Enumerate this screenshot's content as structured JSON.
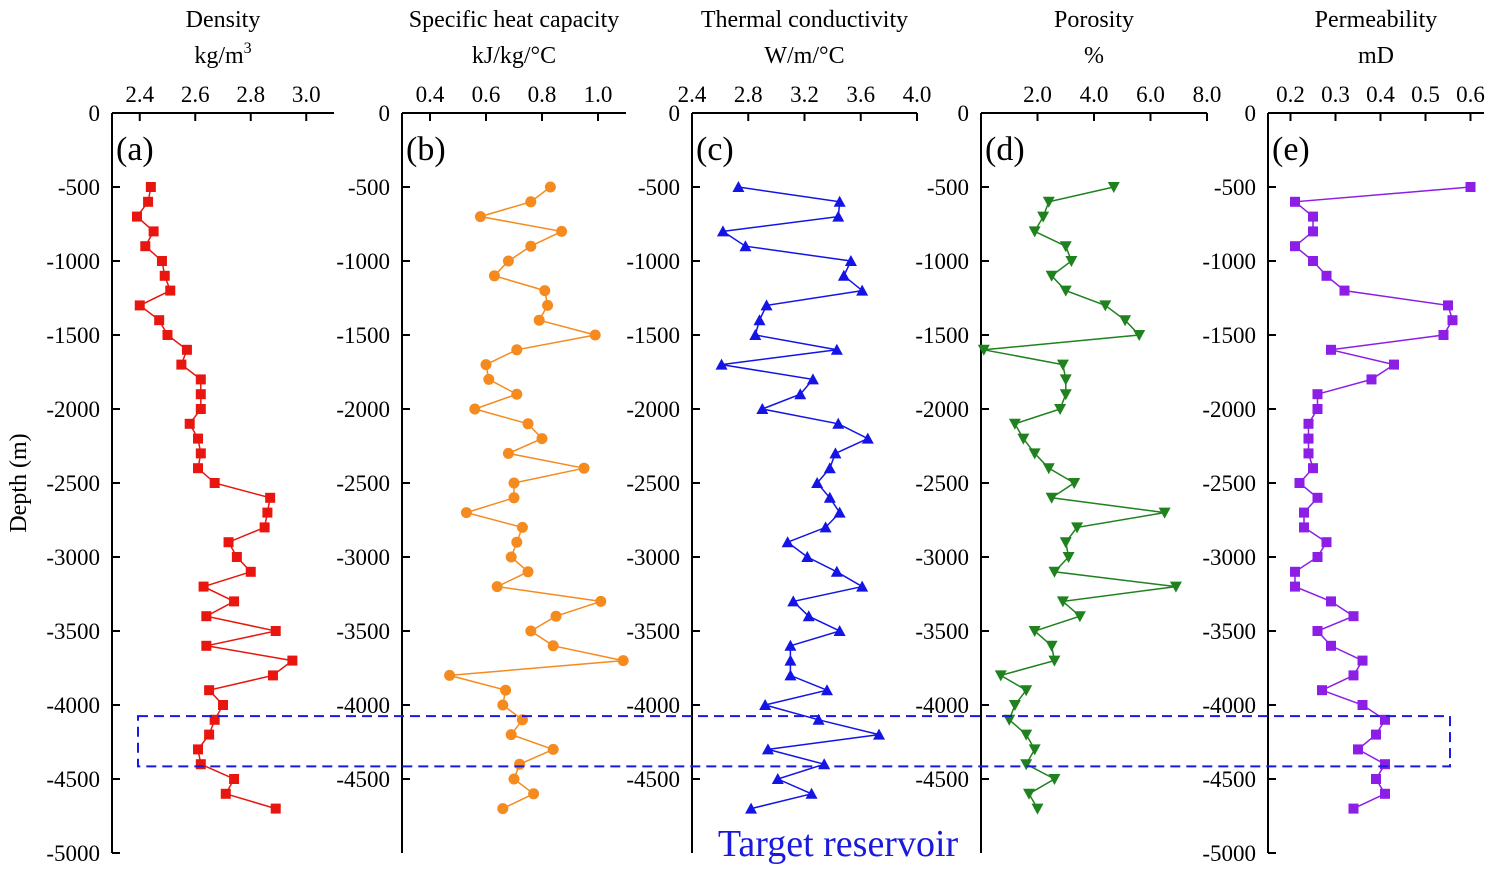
{
  "figure": {
    "ylabel": "Depth (m)",
    "annotation": "Target reservoir",
    "annotation_color": "#1a1adc",
    "target_box_depth_range": [
      -4075,
      -4415
    ]
  },
  "chart_data": [
    {
      "type": "line",
      "panel": "(a)",
      "title": "Density",
      "unit": "kg/m",
      "unit_sup": "3",
      "color": "#e8160f",
      "marker": "square",
      "xlim": [
        2.3,
        3.1
      ],
      "xticks": [
        "2.4",
        "2.6",
        "2.8",
        "3.0"
      ],
      "ylim": [
        -5000,
        0
      ],
      "yticks": [
        "0",
        "-500",
        "-1000",
        "-1500",
        "-2000",
        "-2500",
        "-3000",
        "-3500",
        "-4000",
        "-4500",
        "-5000"
      ],
      "points": [
        [
          2.44,
          -500
        ],
        [
          2.43,
          -600
        ],
        [
          2.39,
          -700
        ],
        [
          2.45,
          -800
        ],
        [
          2.42,
          -900
        ],
        [
          2.48,
          -1000
        ],
        [
          2.49,
          -1100
        ],
        [
          2.51,
          -1200
        ],
        [
          2.4,
          -1300
        ],
        [
          2.47,
          -1400
        ],
        [
          2.5,
          -1500
        ],
        [
          2.57,
          -1600
        ],
        [
          2.55,
          -1700
        ],
        [
          2.62,
          -1800
        ],
        [
          2.62,
          -1900
        ],
        [
          2.62,
          -2000
        ],
        [
          2.58,
          -2100
        ],
        [
          2.61,
          -2200
        ],
        [
          2.62,
          -2300
        ],
        [
          2.61,
          -2400
        ],
        [
          2.67,
          -2500
        ],
        [
          2.87,
          -2600
        ],
        [
          2.86,
          -2700
        ],
        [
          2.85,
          -2800
        ],
        [
          2.72,
          -2900
        ],
        [
          2.75,
          -3000
        ],
        [
          2.8,
          -3100
        ],
        [
          2.63,
          -3200
        ],
        [
          2.74,
          -3300
        ],
        [
          2.64,
          -3400
        ],
        [
          2.89,
          -3500
        ],
        [
          2.64,
          -3600
        ],
        [
          2.95,
          -3700
        ],
        [
          2.88,
          -3800
        ],
        [
          2.65,
          -3900
        ],
        [
          2.7,
          -4000
        ],
        [
          2.67,
          -4100
        ],
        [
          2.65,
          -4200
        ],
        [
          2.61,
          -4300
        ],
        [
          2.62,
          -4400
        ],
        [
          2.74,
          -4500
        ],
        [
          2.71,
          -4600
        ],
        [
          2.89,
          -4700
        ]
      ]
    },
    {
      "type": "line",
      "panel": "(b)",
      "title": "Specific heat capacity",
      "unit": "kJ/kg/°C",
      "unit_sup": "",
      "color": "#f58a1f",
      "marker": "circle",
      "xlim": [
        0.3,
        1.1
      ],
      "xticks": [
        "0.4",
        "0.6",
        "0.8",
        "1.0"
      ],
      "ylim": [
        -5000,
        0
      ],
      "yticks": [
        "0",
        "-500",
        "-1000",
        "-1500",
        "-2000",
        "-2500",
        "-3000",
        "-3500",
        "-4000",
        "-4500"
      ],
      "points": [
        [
          0.83,
          -500
        ],
        [
          0.76,
          -600
        ],
        [
          0.58,
          -700
        ],
        [
          0.87,
          -800
        ],
        [
          0.76,
          -900
        ],
        [
          0.68,
          -1000
        ],
        [
          0.63,
          -1100
        ],
        [
          0.81,
          -1200
        ],
        [
          0.82,
          -1300
        ],
        [
          0.79,
          -1400
        ],
        [
          0.99,
          -1500
        ],
        [
          0.71,
          -1600
        ],
        [
          0.6,
          -1700
        ],
        [
          0.61,
          -1800
        ],
        [
          0.71,
          -1900
        ],
        [
          0.56,
          -2000
        ],
        [
          0.75,
          -2100
        ],
        [
          0.8,
          -2200
        ],
        [
          0.68,
          -2300
        ],
        [
          0.95,
          -2400
        ],
        [
          0.7,
          -2500
        ],
        [
          0.7,
          -2600
        ],
        [
          0.53,
          -2700
        ],
        [
          0.73,
          -2800
        ],
        [
          0.71,
          -2900
        ],
        [
          0.69,
          -3000
        ],
        [
          0.75,
          -3100
        ],
        [
          0.64,
          -3200
        ],
        [
          1.01,
          -3300
        ],
        [
          0.85,
          -3400
        ],
        [
          0.76,
          -3500
        ],
        [
          0.84,
          -3600
        ],
        [
          1.09,
          -3700
        ],
        [
          0.47,
          -3800
        ],
        [
          0.67,
          -3900
        ],
        [
          0.66,
          -4000
        ],
        [
          0.73,
          -4100
        ],
        [
          0.69,
          -4200
        ],
        [
          0.84,
          -4300
        ],
        [
          0.72,
          -4400
        ],
        [
          0.7,
          -4500
        ],
        [
          0.77,
          -4600
        ],
        [
          0.66,
          -4700
        ]
      ]
    },
    {
      "type": "line",
      "panel": "(c)",
      "title": "Thermal conductivity",
      "unit": "W/m/°C",
      "unit_sup": "",
      "color": "#1414e6",
      "marker": "triangle-up",
      "xlim": [
        2.4,
        4.0
      ],
      "xticks": [
        "2.4",
        "2.8",
        "3.2",
        "3.6",
        "4.0"
      ],
      "ylim": [
        -5000,
        0
      ],
      "yticks": [
        "0",
        "-500",
        "-1000",
        "-1500",
        "-2000",
        "-2500",
        "-3000",
        "-3500",
        "-4000",
        "-4500"
      ],
      "points": [
        [
          2.73,
          -500
        ],
        [
          3.45,
          -600
        ],
        [
          3.44,
          -700
        ],
        [
          2.62,
          -800
        ],
        [
          2.78,
          -900
        ],
        [
          3.53,
          -1000
        ],
        [
          3.48,
          -1100
        ],
        [
          3.61,
          -1200
        ],
        [
          2.93,
          -1300
        ],
        [
          2.88,
          -1400
        ],
        [
          2.85,
          -1500
        ],
        [
          3.43,
          -1600
        ],
        [
          2.61,
          -1700
        ],
        [
          3.26,
          -1800
        ],
        [
          3.17,
          -1900
        ],
        [
          2.9,
          -2000
        ],
        [
          3.44,
          -2100
        ],
        [
          3.65,
          -2200
        ],
        [
          3.42,
          -2300
        ],
        [
          3.38,
          -2400
        ],
        [
          3.29,
          -2500
        ],
        [
          3.38,
          -2600
        ],
        [
          3.45,
          -2700
        ],
        [
          3.35,
          -2800
        ],
        [
          3.08,
          -2900
        ],
        [
          3.22,
          -3000
        ],
        [
          3.43,
          -3100
        ],
        [
          3.61,
          -3200
        ],
        [
          3.12,
          -3300
        ],
        [
          3.23,
          -3400
        ],
        [
          3.45,
          -3500
        ],
        [
          3.1,
          -3600
        ],
        [
          3.1,
          -3700
        ],
        [
          3.1,
          -3800
        ],
        [
          3.36,
          -3900
        ],
        [
          2.92,
          -4000
        ],
        [
          3.3,
          -4100
        ],
        [
          3.73,
          -4200
        ],
        [
          2.94,
          -4300
        ],
        [
          3.34,
          -4400
        ],
        [
          3.01,
          -4500
        ],
        [
          3.25,
          -4600
        ],
        [
          2.82,
          -4700
        ]
      ]
    },
    {
      "type": "line",
      "panel": "(d)",
      "title": "Porosity",
      "unit": "%",
      "unit_sup": "",
      "color": "#1f821f",
      "marker": "triangle-down",
      "xlim": [
        0.0,
        8.0
      ],
      "xticks": [
        "2.0",
        "4.0",
        "6.0",
        "8.0"
      ],
      "ylim": [
        -5000,
        0
      ],
      "yticks": [
        "0",
        "-500",
        "-1000",
        "-1500",
        "-2000",
        "-2500",
        "-3000",
        "-3500",
        "-4000",
        "-4500"
      ],
      "points": [
        [
          4.7,
          -500
        ],
        [
          2.4,
          -600
        ],
        [
          2.2,
          -700
        ],
        [
          1.9,
          -800
        ],
        [
          3.0,
          -900
        ],
        [
          3.2,
          -1000
        ],
        [
          2.5,
          -1100
        ],
        [
          3.0,
          -1200
        ],
        [
          4.4,
          -1300
        ],
        [
          5.1,
          -1400
        ],
        [
          5.6,
          -1500
        ],
        [
          0.1,
          -1600
        ],
        [
          2.9,
          -1700
        ],
        [
          3.0,
          -1800
        ],
        [
          3.0,
          -1900
        ],
        [
          2.8,
          -2000
        ],
        [
          1.2,
          -2100
        ],
        [
          1.5,
          -2200
        ],
        [
          1.9,
          -2300
        ],
        [
          2.4,
          -2400
        ],
        [
          3.3,
          -2500
        ],
        [
          2.5,
          -2600
        ],
        [
          6.5,
          -2700
        ],
        [
          3.4,
          -2800
        ],
        [
          3.0,
          -2900
        ],
        [
          3.1,
          -3000
        ],
        [
          2.6,
          -3100
        ],
        [
          6.9,
          -3200
        ],
        [
          2.9,
          -3300
        ],
        [
          3.5,
          -3400
        ],
        [
          1.9,
          -3500
        ],
        [
          2.5,
          -3600
        ],
        [
          2.6,
          -3700
        ],
        [
          0.7,
          -3800
        ],
        [
          1.6,
          -3900
        ],
        [
          1.2,
          -4000
        ],
        [
          1.0,
          -4100
        ],
        [
          1.6,
          -4200
        ],
        [
          1.9,
          -4300
        ],
        [
          1.6,
          -4400
        ],
        [
          2.6,
          -4500
        ],
        [
          1.7,
          -4600
        ],
        [
          2.0,
          -4700
        ]
      ]
    },
    {
      "type": "line",
      "panel": "(e)",
      "title": "Permeability",
      "unit": "mD",
      "unit_sup": "",
      "color": "#8c1ee6",
      "marker": "square",
      "xlim": [
        0.15,
        0.63
      ],
      "xticks": [
        "0.2",
        "0.3",
        "0.4",
        "0.5",
        "0.6"
      ],
      "ylim": [
        -5000,
        0
      ],
      "yticks": [
        "0",
        "-500",
        "-1000",
        "-1500",
        "-2000",
        "-2500",
        "-3000",
        "-3500",
        "-4000",
        "-4500",
        "-5000"
      ],
      "points": [
        [
          0.6,
          -500
        ],
        [
          0.21,
          -600
        ],
        [
          0.25,
          -700
        ],
        [
          0.25,
          -800
        ],
        [
          0.21,
          -900
        ],
        [
          0.25,
          -1000
        ],
        [
          0.28,
          -1100
        ],
        [
          0.32,
          -1200
        ],
        [
          0.55,
          -1300
        ],
        [
          0.56,
          -1400
        ],
        [
          0.54,
          -1500
        ],
        [
          0.29,
          -1600
        ],
        [
          0.43,
          -1700
        ],
        [
          0.38,
          -1800
        ],
        [
          0.26,
          -1900
        ],
        [
          0.26,
          -2000
        ],
        [
          0.24,
          -2100
        ],
        [
          0.24,
          -2200
        ],
        [
          0.24,
          -2300
        ],
        [
          0.25,
          -2400
        ],
        [
          0.22,
          -2500
        ],
        [
          0.26,
          -2600
        ],
        [
          0.23,
          -2700
        ],
        [
          0.23,
          -2800
        ],
        [
          0.28,
          -2900
        ],
        [
          0.26,
          -3000
        ],
        [
          0.21,
          -3100
        ],
        [
          0.21,
          -3200
        ],
        [
          0.29,
          -3300
        ],
        [
          0.34,
          -3400
        ],
        [
          0.26,
          -3500
        ],
        [
          0.29,
          -3600
        ],
        [
          0.36,
          -3700
        ],
        [
          0.34,
          -3800
        ],
        [
          0.27,
          -3900
        ],
        [
          0.36,
          -4000
        ],
        [
          0.41,
          -4100
        ],
        [
          0.39,
          -4200
        ],
        [
          0.35,
          -4300
        ],
        [
          0.41,
          -4400
        ],
        [
          0.39,
          -4500
        ],
        [
          0.41,
          -4600
        ],
        [
          0.34,
          -4700
        ]
      ]
    }
  ]
}
